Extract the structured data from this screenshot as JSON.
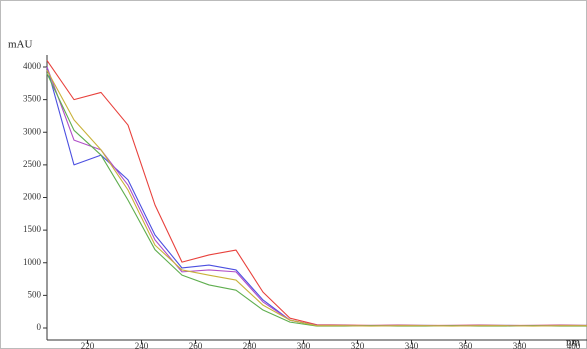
{
  "chart_data": {
    "type": "line",
    "y_label": "mAU",
    "x_label": "nm",
    "x": [
      205,
      215,
      225,
      235,
      245,
      255,
      265,
      275,
      285,
      295,
      305,
      315,
      325,
      335,
      345,
      355,
      365,
      375,
      385,
      395,
      405
    ],
    "series": [
      {
        "color": "#e8413c",
        "values": [
          4100,
          3500,
          3610,
          3110,
          1885,
          1010,
          1120,
          1195,
          550,
          150,
          50,
          45,
          40,
          45,
          40,
          40,
          45,
          40,
          40,
          45,
          40
        ]
      },
      {
        "color": "#4b4fe0",
        "values": [
          4000,
          2500,
          2650,
          2270,
          1425,
          920,
          965,
          890,
          430,
          120,
          40,
          40,
          35,
          40,
          40,
          35,
          40,
          40,
          35,
          40,
          40
        ]
      },
      {
        "color": "#b04ec8",
        "values": [
          4000,
          2880,
          2730,
          2190,
          1350,
          860,
          890,
          860,
          400,
          120,
          40,
          35,
          40,
          40,
          35,
          40,
          40,
          35,
          40,
          40,
          35
        ]
      },
      {
        "color": "#5fae4e",
        "values": [
          3900,
          3030,
          2650,
          1960,
          1200,
          810,
          660,
          580,
          275,
          90,
          30,
          30,
          35,
          30,
          30,
          35,
          30,
          30,
          35,
          30,
          30
        ]
      },
      {
        "color": "#c9b23a",
        "values": [
          3950,
          3190,
          2730,
          2115,
          1270,
          890,
          810,
          735,
          350,
          120,
          35,
          35,
          30,
          35,
          35,
          30,
          35,
          35,
          30,
          35,
          35
        ]
      }
    ],
    "xlim": [
      205,
      405
    ],
    "ylim": [
      0,
      4000
    ],
    "xticks": [
      220,
      240,
      260,
      280,
      300,
      320,
      340,
      360,
      380,
      400
    ],
    "yticks": [
      0,
      500,
      1000,
      1500,
      2000,
      2500,
      3000,
      3500,
      4000
    ]
  }
}
